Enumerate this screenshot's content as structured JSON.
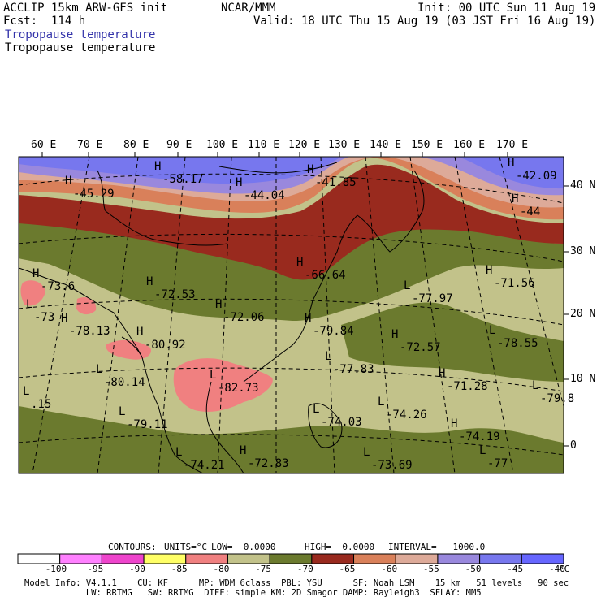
{
  "header": {
    "model": "ACCLIP 15km ARW-GFS init",
    "org": "NCAR/MMM",
    "init": "Init: 00 UTC Sun 11 Aug 19",
    "fcst": "Fcst:  114 h",
    "valid": "Valid: 18 UTC Thu 15 Aug 19 (03 JST Fri 16 Aug 19)",
    "field_title_1": "Tropopause temperature",
    "field_title_2": "Tropopause temperature"
  },
  "map": {
    "lon_labels": [
      "60 E",
      "70 E",
      "80 E",
      "90 E",
      "100 E",
      "110 E",
      "120 E",
      "130 E",
      "140 E",
      "150 E",
      "160 E",
      "170 E"
    ],
    "lat_labels": [
      "40 N",
      "30 N",
      "20 N",
      "10 N",
      "0"
    ],
    "highs": [
      {
        "label": "H",
        "value": "-58.17"
      },
      {
        "label": "H",
        "value": "-45.29"
      },
      {
        "label": "H",
        "value": "-44.04"
      },
      {
        "label": "H",
        "value": "-41.85"
      },
      {
        "label": "H",
        "value": "-42.09"
      },
      {
        "label": "H",
        "value": "-44"
      },
      {
        "label": "H",
        "value": "-73.6"
      },
      {
        "label": "H",
        "value": "-72.53"
      },
      {
        "label": "H",
        "value": "-72.06"
      },
      {
        "label": "H",
        "value": "-66.64"
      },
      {
        "label": "H",
        "value": "-71.56"
      },
      {
        "label": "H",
        "value": "-79.84"
      },
      {
        "label": "H",
        "value": "-72.57"
      },
      {
        "label": "H",
        "value": "-78.13"
      },
      {
        "label": "H",
        "value": "-80.92"
      },
      {
        "label": "H",
        "value": "-71.28"
      },
      {
        "label": "H",
        "value": "-74.19"
      },
      {
        "label": "H",
        "value": "-72.83"
      }
    ],
    "lows": [
      {
        "label": "L",
        "value": "-77.97"
      },
      {
        "label": "L",
        "value": "-78.55"
      },
      {
        "label": "L",
        "value": "-77.83"
      },
      {
        "label": "L",
        "value": "-80.14"
      },
      {
        "label": "L",
        "value": "-82.73"
      },
      {
        "label": "L",
        "value": "-79.11"
      },
      {
        "label": "L",
        "value": "-74.26"
      },
      {
        "label": "L",
        "value": "-74.03"
      },
      {
        "label": "L",
        "value": "-73.69"
      },
      {
        "label": "L",
        "value": "-74.21"
      },
      {
        "label": "L",
        "value": "-79.8"
      },
      {
        "label": "L",
        "value": "-77"
      },
      {
        "label": "L",
        "value": "-73"
      },
      {
        "label": "L",
        "value": ".15"
      }
    ]
  },
  "contours": {
    "label": "CONTOURS:",
    "units": "UNITS=°C",
    "low": "LOW=  0.0000",
    "high": "HIGH=  0.0000",
    "interval": "INTERVAL=   1000.0"
  },
  "colorbar": {
    "unit": "°C",
    "labels": [
      "-100",
      "-95",
      "-90",
      "-85",
      "-80",
      "-75",
      "-70",
      "-65",
      "-60",
      "-55",
      "-50",
      "-45",
      "-40"
    ],
    "colors": [
      "#ffffff",
      "#ff80ff",
      "#ee44cc",
      "#ffff66",
      "#f08080",
      "#c2c28a",
      "#6b7a2e",
      "#992a1e",
      "#d9805a",
      "#ddaa99",
      "#9988dd",
      "#7777ee",
      "#6666ff"
    ]
  },
  "footer": {
    "line1": "Model Info: V4.1.1    CU: KF      MP: WDM 6class  PBL: YSU      SF: Noah LSM    15 km   51 levels   90 sec",
    "line2": "            LW: RRTMG   SW: RRTMG  DIFF: simple KM: 2D Smagor DAMP: Rayleigh3  SFLAY: MM5"
  }
}
